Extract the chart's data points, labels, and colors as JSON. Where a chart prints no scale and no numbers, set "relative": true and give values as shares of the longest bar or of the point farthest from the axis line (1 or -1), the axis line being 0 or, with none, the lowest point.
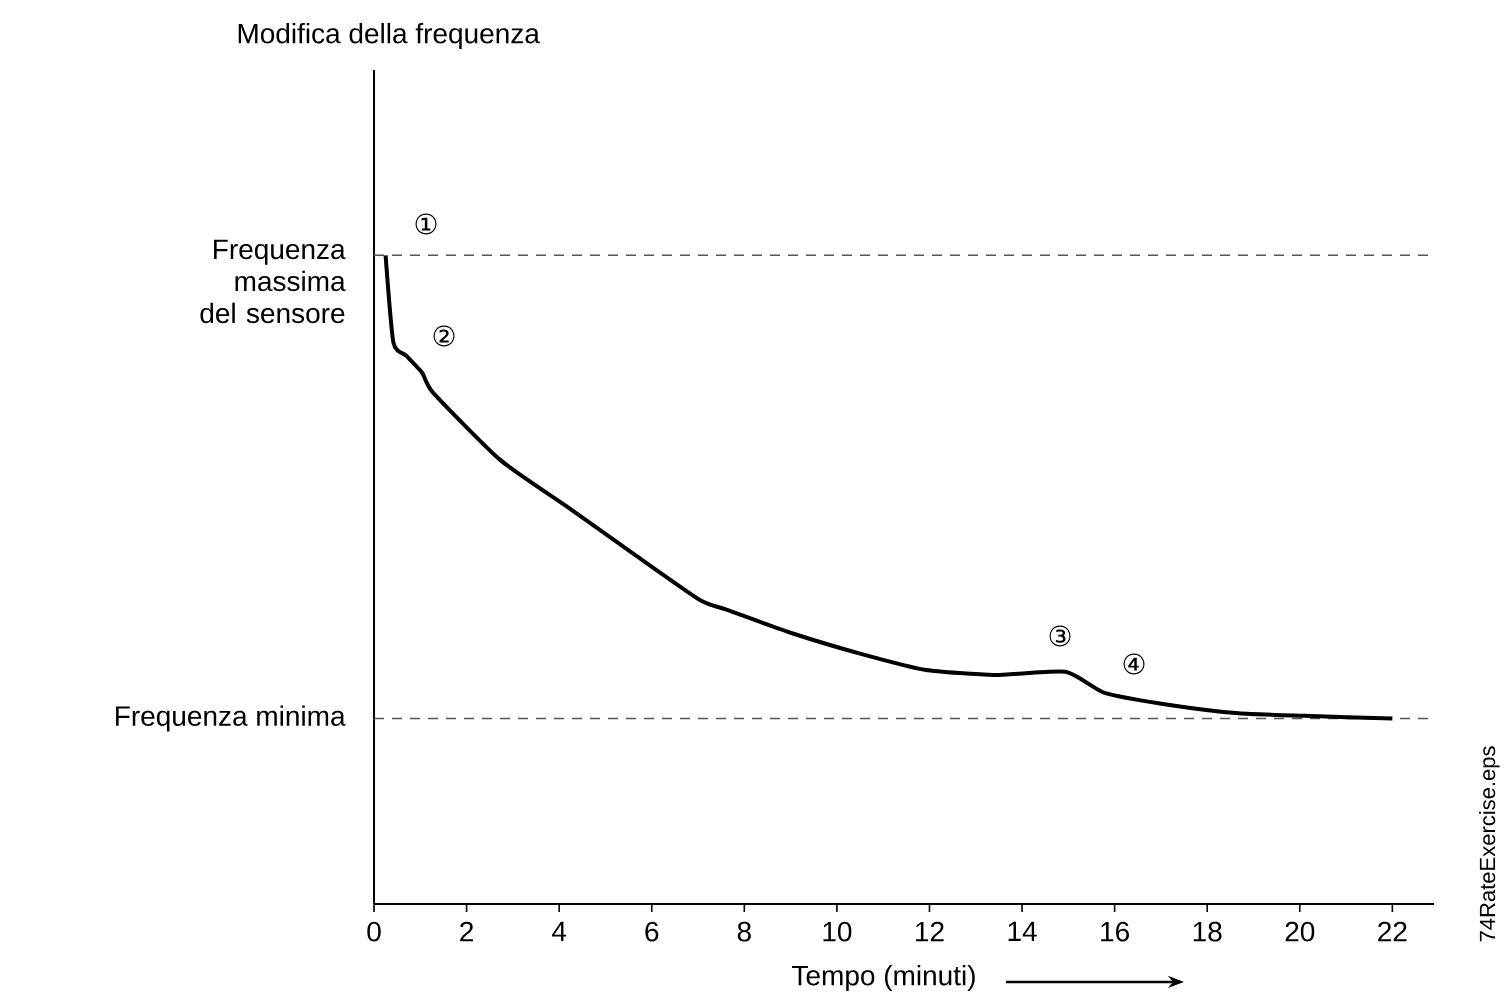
{
  "chart_data": {
    "type": "line",
    "relative": true,
    "xlabel": "Tempo (minuti)",
    "x": [
      0.25,
      0.42,
      0.7,
      1.04,
      1.28,
      2.72,
      4.14,
      5.6,
      7.03,
      7.6,
      9.05,
      10.5,
      11.9,
      13.4,
      14.94,
      15.8,
      17.26,
      18.68,
      20.1,
      22
    ],
    "values": [
      1,
      0.865,
      0.845,
      0.819,
      0.788,
      0.685,
      0.614,
      0.54,
      0.469,
      0.454,
      0.417,
      0.386,
      0.361,
      0.353,
      0.358,
      0.325,
      0.306,
      0.294,
      0.29,
      0.286
    ],
    "color": "#000000",
    "xlim": [
      0,
      22.9
    ],
    "xticks": [
      0,
      2,
      4,
      6,
      8,
      10,
      12,
      14,
      16,
      18,
      20,
      22
    ],
    "marker": "none",
    "line_style": "solid",
    "grid": false,
    "ref_lines": [
      {
        "axis": "y",
        "value": 1,
        "label": "Frequenza massima del sensore",
        "color": "#555555",
        "line_style": "dashed"
      },
      {
        "axis": "y",
        "value": 0.286,
        "label": "Frequenza minima",
        "color": "#555555",
        "line_style": "dashed"
      }
    ],
    "annotations": [
      "Modifica della frequenza",
      "①",
      "②",
      "③",
      "④",
      "74RateExercise.eps"
    ]
  }
}
